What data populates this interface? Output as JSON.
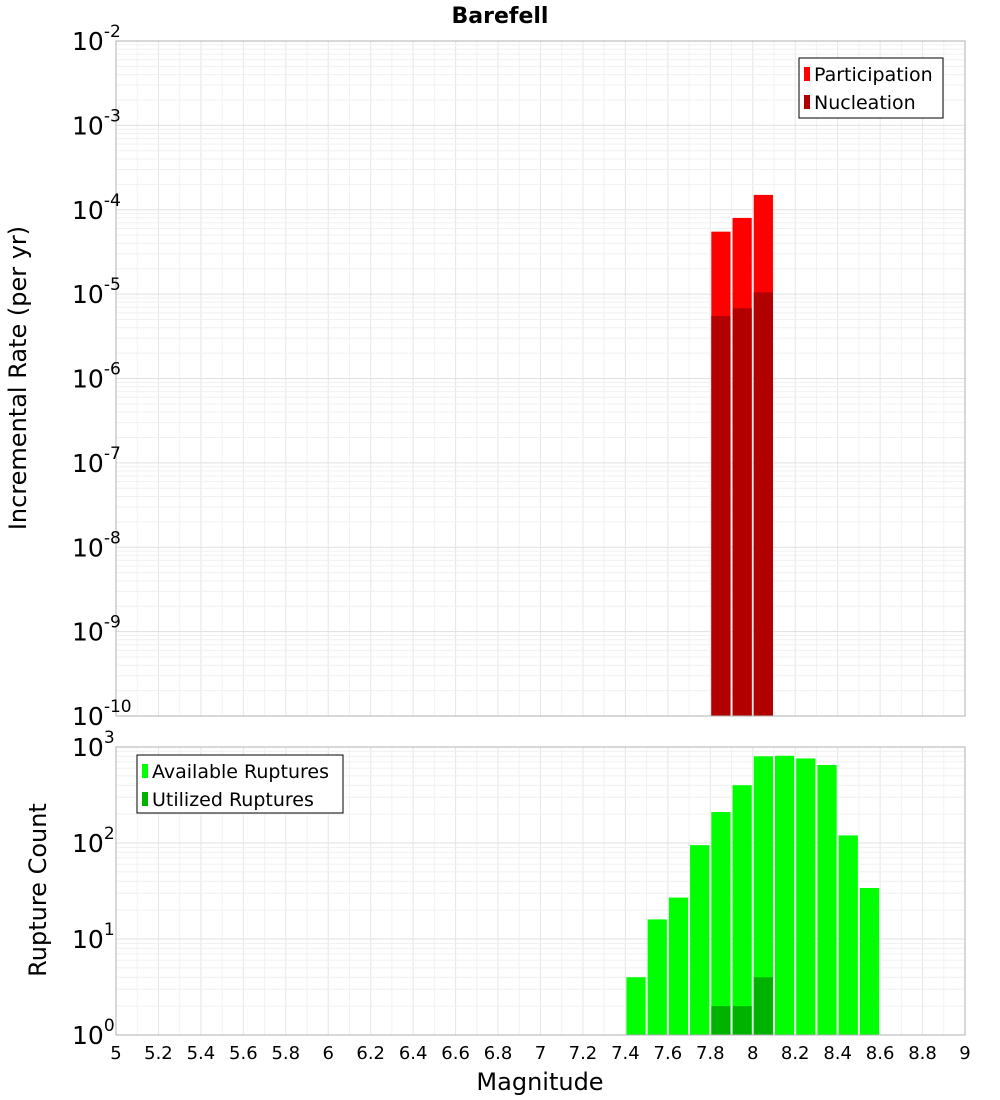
{
  "title": "Barefell",
  "chart_data": [
    {
      "type": "bar",
      "scale": "log",
      "ylabel": "Incremental Rate (per yr)",
      "ylim_exponents": [
        -10,
        -2
      ],
      "bar_width": 0.1,
      "legend_position": "top-right",
      "series": [
        {
          "name": "Participation",
          "color": "#ff0000",
          "x": [
            7.85,
            7.95,
            8.05
          ],
          "values": [
            5.5e-05,
            8e-05,
            0.00015
          ]
        },
        {
          "name": "Nucleation",
          "color": "#b20000",
          "x": [
            7.85,
            7.95,
            8.05
          ],
          "values": [
            5.5e-06,
            6.8e-06,
            1.05e-05
          ]
        }
      ]
    },
    {
      "type": "bar",
      "scale": "log",
      "ylabel": "Rupture Count",
      "ylim_exponents": [
        0,
        3
      ],
      "bar_width": 0.1,
      "legend_position": "top-left",
      "series": [
        {
          "name": "Available Ruptures",
          "color": "#00ff00",
          "x": [
            6.95,
            7.35,
            7.45,
            7.55,
            7.65,
            7.75,
            7.85,
            7.95,
            8.05,
            8.15,
            8.25,
            8.35,
            8.45,
            8.55
          ],
          "values": [
            1,
            1,
            4,
            16,
            27,
            95,
            210,
            400,
            800,
            810,
            760,
            650,
            120,
            34
          ]
        },
        {
          "name": "Utilized Ruptures",
          "color": "#00b200",
          "x": [
            7.85,
            7.95,
            8.05
          ],
          "values": [
            2,
            2,
            4
          ]
        }
      ]
    }
  ],
  "x_axis": {
    "label": "Magnitude",
    "min": 5,
    "max": 9,
    "ticks": [
      "5",
      "5.2",
      "5.4",
      "5.6",
      "5.8",
      "6",
      "6.2",
      "6.4",
      "6.6",
      "6.8",
      "7",
      "7.2",
      "7.4",
      "7.6",
      "7.8",
      "8",
      "8.2",
      "8.4",
      "8.6",
      "8.8",
      "9"
    ]
  }
}
